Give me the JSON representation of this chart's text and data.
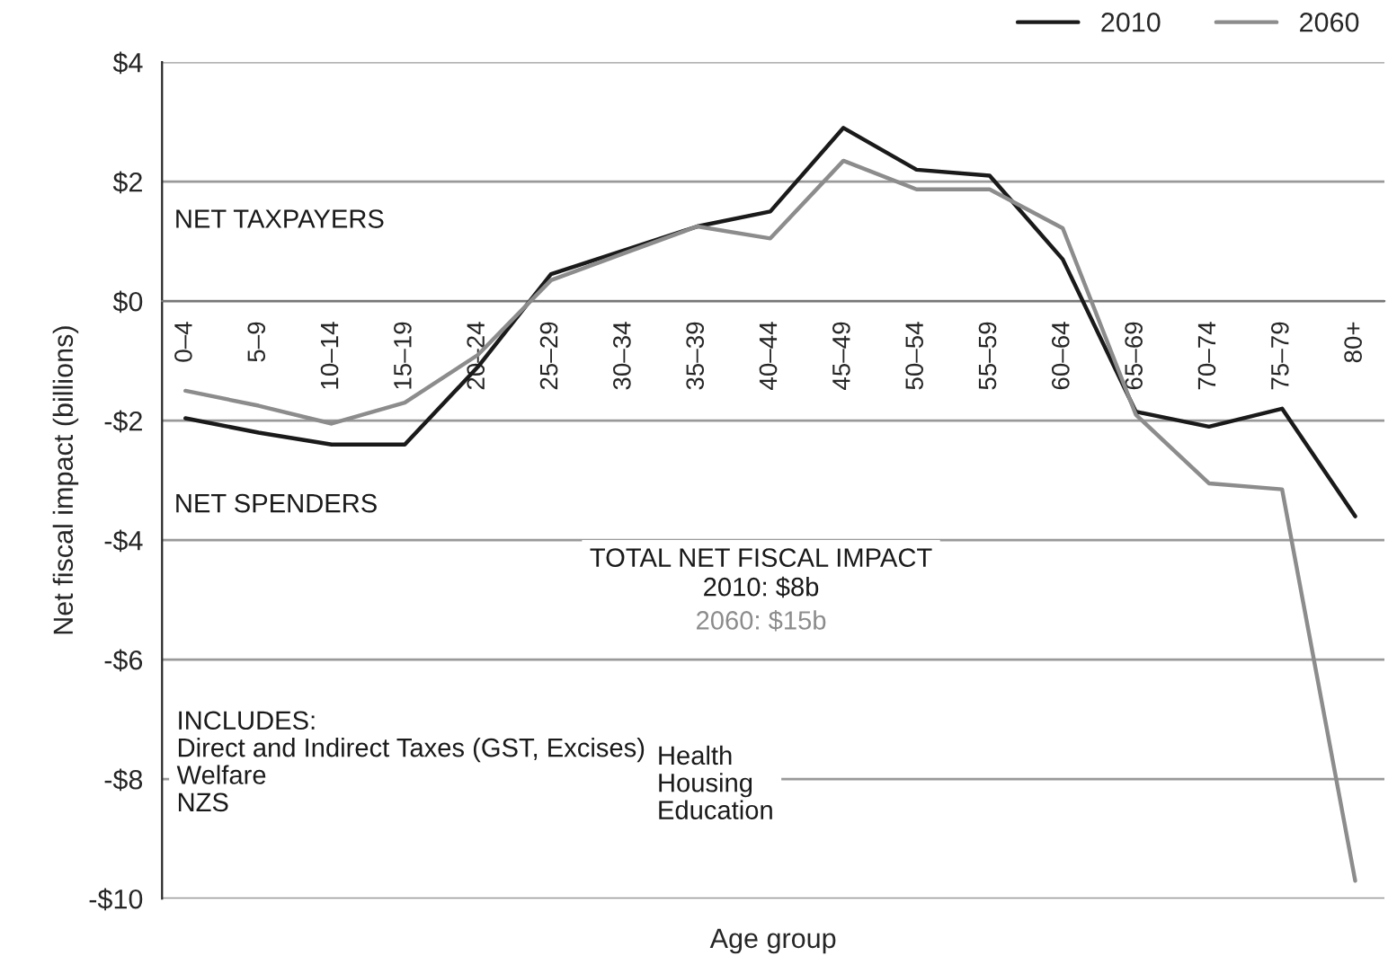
{
  "chart_data": {
    "type": "line",
    "xlabel": "Age group",
    "ylabel": "Net fiscal impact (billions)",
    "categories": [
      "0–4",
      "5–9",
      "10–14",
      "15–19",
      "20–24",
      "25–29",
      "30–34",
      "35–39",
      "40–44",
      "45–49",
      "50–54",
      "55–59",
      "60–64",
      "65–69",
      "70–74",
      "75–79",
      "80+"
    ],
    "series": [
      {
        "name": "2010",
        "color": "#1a1a1a",
        "values": [
          -1.96,
          -2.2,
          -2.4,
          -2.4,
          -1.1,
          0.45,
          0.85,
          1.25,
          1.5,
          2.9,
          2.2,
          2.1,
          0.7,
          -1.85,
          -2.1,
          -1.8,
          -3.6
        ]
      },
      {
        "name": "2060",
        "color": "#8c8c8c",
        "values": [
          -1.5,
          -1.75,
          -2.05,
          -1.7,
          -0.9,
          0.35,
          0.8,
          1.25,
          1.05,
          2.35,
          1.87,
          1.87,
          1.22,
          -1.9,
          -3.05,
          -3.15,
          -9.7
        ]
      }
    ],
    "ylim": [
      -10,
      4
    ],
    "yticks": [
      {
        "value": 4,
        "label": "$4"
      },
      {
        "value": 2,
        "label": "$2"
      },
      {
        "value": 0,
        "label": "$0"
      },
      {
        "value": -2,
        "label": "-$2"
      },
      {
        "value": -4,
        "label": "-$4"
      },
      {
        "value": -6,
        "label": "-$6"
      },
      {
        "value": -8,
        "label": "-$8"
      },
      {
        "value": -10,
        "label": "-$10"
      }
    ],
    "grid": "y",
    "legend": "top right",
    "marker": "none",
    "line_style": "solid",
    "annotations": [
      "NET TAXPAYERS",
      "NET SPENDERS",
      "TOTAL NET FISCAL IMPACT",
      "2010: $8b",
      "2060: $15b",
      "INCLUDES:\nDirect and Indirect Taxes (GST, Excises)\nWelfare\nNZS",
      "Health\nHousing\nEducation"
    ]
  }
}
